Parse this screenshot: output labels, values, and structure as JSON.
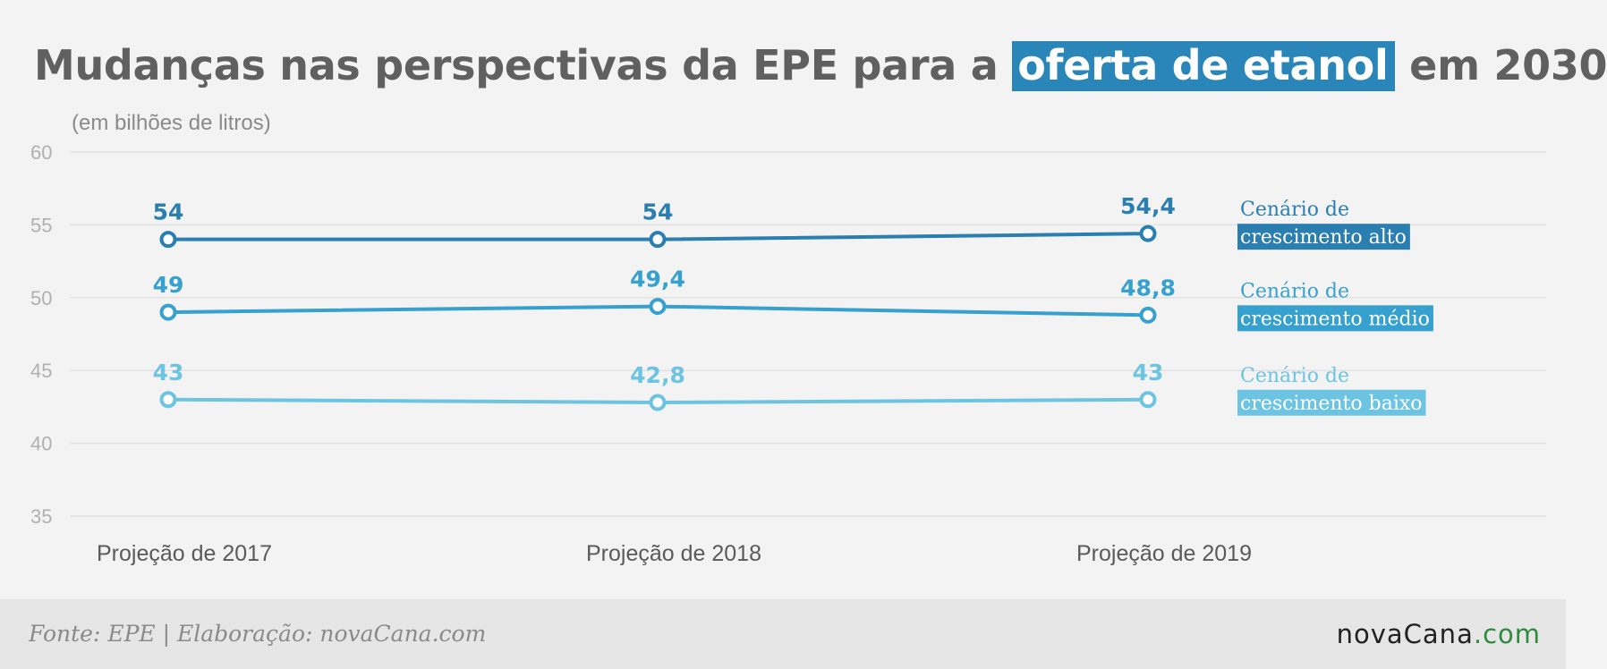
{
  "header": {
    "title_before": "Mudanças nas perspectivas da EPE para a",
    "title_highlight": "oferta de etanol",
    "title_after": "em 2030",
    "unit": "(em bilhões de litros)"
  },
  "footer": {
    "source": "Fonte: EPE | Elaboração: novaCana.com",
    "logo_main": "novaCana",
    "logo_dot": ".",
    "logo_tld": "com"
  },
  "chart_data": {
    "type": "line",
    "categories": [
      "Projeção de 2017",
      "Projeção de 2018",
      "Projeção de 2019"
    ],
    "ylim": [
      35,
      60
    ],
    "yticks": [
      35,
      40,
      45,
      50,
      55,
      60
    ],
    "ytick_labels": [
      "35",
      "40",
      "45",
      "50",
      "55",
      "60"
    ],
    "grid": true,
    "series": [
      {
        "name_line1": "Cenário de",
        "name_line2": "crescimento alto",
        "values": [
          54,
          54,
          54.4
        ],
        "labels": [
          "54",
          "54",
          "54,4"
        ],
        "color": "#2a7fb0"
      },
      {
        "name_line1": "Cenário de",
        "name_line2": "crescimento médio",
        "values": [
          49,
          49.4,
          48.8
        ],
        "labels": [
          "49",
          "49,4",
          "48,8"
        ],
        "color": "#36a0cf"
      },
      {
        "name_line1": "Cenário de",
        "name_line2": "crescimento baixo",
        "values": [
          43,
          42.8,
          43
        ],
        "labels": [
          "43",
          "42,8",
          "43"
        ],
        "color": "#6cc4e2"
      }
    ]
  }
}
